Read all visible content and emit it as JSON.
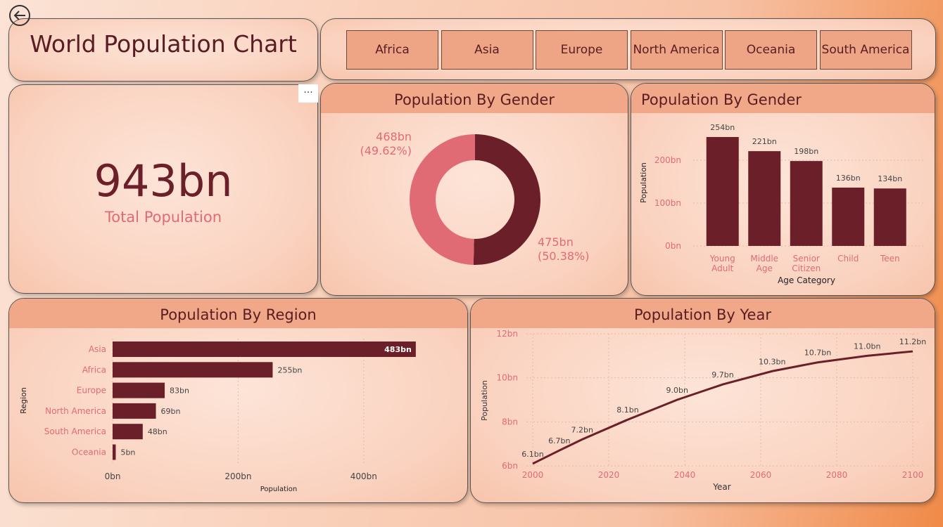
{
  "header": {
    "title": "World Population Chart"
  },
  "slicer": {
    "options": [
      "Africa",
      "Asia",
      "Europe",
      "North America",
      "Oceania",
      "South America"
    ]
  },
  "kpi": {
    "value": "943bn",
    "label": "Total Population"
  },
  "chart_data": [
    {
      "type": "pie",
      "title": "Population By Gender",
      "donut": true,
      "values": [
        475,
        468
      ],
      "value_labels": [
        "475bn",
        "468bn"
      ],
      "percents": [
        50.38,
        49.62
      ],
      "percent_labels": [
        "(50.38%)",
        "(49.62%)"
      ],
      "colors": [
        "#6b1f28",
        "#e06b75"
      ]
    },
    {
      "type": "bar",
      "title": "Population By Gender",
      "color": "#6b1f28",
      "categories": [
        "Young Adult",
        "Middle Age",
        "Senior Citizen",
        "Child",
        "Teen"
      ],
      "values": [
        254,
        221,
        198,
        136,
        134
      ],
      "value_labels": [
        "254bn",
        "221bn",
        "198bn",
        "136bn",
        "134bn"
      ],
      "ylim": [
        0,
        290
      ],
      "yticks": [
        {
          "value": 0,
          "label": "0bn"
        },
        {
          "value": 100,
          "label": "100bn"
        },
        {
          "value": 200,
          "label": "200bn"
        }
      ],
      "xlabel": "Age Category",
      "ylabel": "Population",
      "grid": true
    },
    {
      "type": "bar",
      "horizontal": true,
      "title": "Population By Region",
      "color": "#6b1f28",
      "categories": [
        "Asia",
        "Africa",
        "Europe",
        "North America",
        "South America",
        "Oceania"
      ],
      "values": [
        483,
        255,
        83,
        69,
        48,
        5
      ],
      "value_labels": [
        "483bn",
        "255bn",
        "83bn",
        "69bn",
        "48bn",
        "5bn"
      ],
      "xlim": [
        0,
        500
      ],
      "xticks": [
        {
          "value": 0,
          "label": "0bn"
        },
        {
          "value": 200,
          "label": "200bn"
        },
        {
          "value": 400,
          "label": "400bn"
        }
      ],
      "xlabel": "Population",
      "ylabel": "Region",
      "grid": true
    },
    {
      "type": "line",
      "title": "Population By Year",
      "color": "#6b1f28",
      "x": [
        2000,
        2007,
        2013,
        2025,
        2038,
        2050,
        2063,
        2075,
        2088,
        2100
      ],
      "values": [
        6.1,
        6.7,
        7.2,
        8.1,
        9.0,
        9.7,
        10.3,
        10.7,
        11.0,
        11.2
      ],
      "value_labels": [
        "6.1bn",
        "6.7bn",
        "7.2bn",
        "8.1bn",
        "9.0bn",
        "9.7bn",
        "10.3bn",
        "10.7bn",
        "11.0bn",
        "11.2bn"
      ],
      "xlim": [
        2000,
        2100
      ],
      "xticks": [
        2000,
        2020,
        2040,
        2060,
        2080,
        2100
      ],
      "ylim": [
        6,
        12
      ],
      "yticks": [
        {
          "value": 6,
          "label": "6bn"
        },
        {
          "value": 8,
          "label": "8bn"
        },
        {
          "value": 10,
          "label": "10bn"
        },
        {
          "value": 12,
          "label": "12bn"
        }
      ],
      "xlabel": "Year",
      "ylabel": "Population",
      "grid": true
    }
  ]
}
